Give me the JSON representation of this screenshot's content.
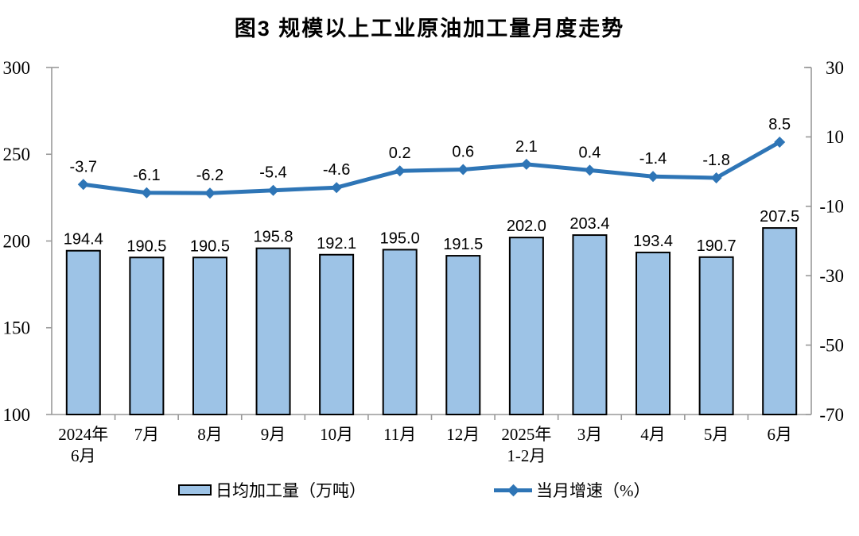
{
  "chart_data": {
    "type": "combo",
    "title": "图3 规模以上工业原油加工量月度走势",
    "categories": [
      "2024年\n6月",
      "7月",
      "8月",
      "9月",
      "10月",
      "11月",
      "12月",
      "2025年\n1-2月",
      "3月",
      "4月",
      "5月",
      "6月"
    ],
    "series": [
      {
        "name": "日均加工量（万吨）",
        "type": "bar",
        "axis": "left",
        "color": "#9DC3E6",
        "border_color": "#000000",
        "values": [
          194.4,
          190.5,
          190.5,
          195.8,
          192.1,
          195.0,
          191.5,
          202.0,
          203.4,
          193.4,
          190.7,
          207.5
        ]
      },
      {
        "name": "当月增速（%）",
        "type": "line",
        "axis": "right",
        "color": "#2E75B6",
        "marker": "diamond",
        "values": [
          -3.7,
          -6.1,
          -6.2,
          -5.4,
          -4.6,
          0.2,
          0.6,
          2.1,
          0.4,
          -1.4,
          -1.8,
          8.5
        ]
      }
    ],
    "axes": {
      "left": {
        "min": 100,
        "max": 300,
        "ticks": [
          300,
          250,
          200,
          150,
          100
        ]
      },
      "right": {
        "min": -70,
        "max": 30,
        "ticks": [
          30,
          10,
          -10,
          -30,
          -50,
          -70
        ]
      }
    },
    "grid": false,
    "legend_position": "bottom",
    "data_label_decimals": 1,
    "axis_color": "#999999",
    "text_color": "#000000"
  }
}
